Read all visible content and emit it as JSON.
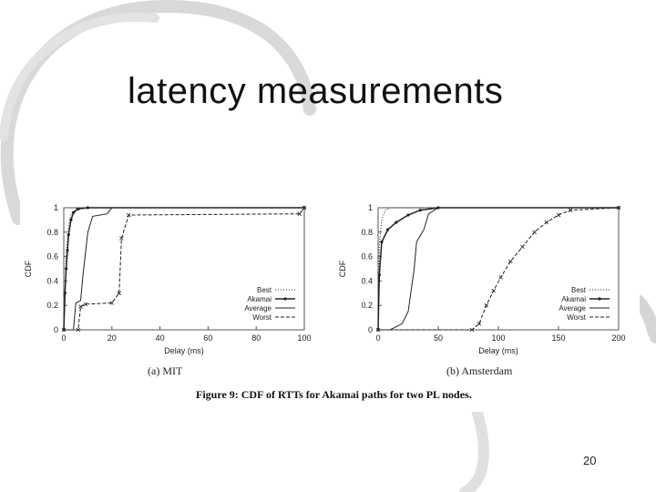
{
  "slide": {
    "title": "latency measurements",
    "page_number": "20"
  },
  "figure": {
    "caption": "Figure 9: CDF of RTTs for Akamai paths for two PL nodes."
  },
  "chart_data": [
    {
      "type": "line",
      "subcaption": "(a) MIT",
      "xlabel": "Delay (ms)",
      "ylabel": "CDF",
      "xlim": [
        0,
        100
      ],
      "ylim": [
        0,
        1
      ],
      "x_ticks": [
        0,
        20,
        40,
        60,
        80,
        100
      ],
      "y_ticks": [
        0,
        0.2,
        0.4,
        0.6,
        0.8,
        1
      ],
      "grid": false,
      "legend_position": "bottom-right",
      "series": [
        {
          "name": "Best",
          "style": "dotted",
          "points": [
            [
              0,
              0
            ],
            [
              1,
              0.6
            ],
            [
              2,
              0.85
            ],
            [
              3,
              0.95
            ],
            [
              5,
              0.99
            ],
            [
              10,
              1
            ],
            [
              100,
              1
            ]
          ]
        },
        {
          "name": "Akamai",
          "style": "solid-circle",
          "points": [
            [
              0,
              0
            ],
            [
              0.5,
              0.3
            ],
            [
              1,
              0.5
            ],
            [
              1.5,
              0.65
            ],
            [
              2,
              0.78
            ],
            [
              3,
              0.9
            ],
            [
              4,
              0.96
            ],
            [
              6,
              0.99
            ],
            [
              10,
              1
            ],
            [
              100,
              1
            ]
          ]
        },
        {
          "name": "Average",
          "style": "solid",
          "points": [
            [
              0,
              0
            ],
            [
              4,
              0
            ],
            [
              5,
              0.22
            ],
            [
              7,
              0.24
            ],
            [
              8,
              0.45
            ],
            [
              10,
              0.8
            ],
            [
              12,
              0.93
            ],
            [
              18,
              0.95
            ],
            [
              20,
              1
            ],
            [
              100,
              1
            ]
          ]
        },
        {
          "name": "Worst",
          "style": "dash-x",
          "points": [
            [
              0,
              0
            ],
            [
              6,
              0
            ],
            [
              7,
              0.19
            ],
            [
              9,
              0.21
            ],
            [
              20,
              0.22
            ],
            [
              23,
              0.3
            ],
            [
              24,
              0.75
            ],
            [
              27,
              0.94
            ],
            [
              98,
              0.95
            ],
            [
              100,
              1
            ]
          ]
        }
      ]
    },
    {
      "type": "line",
      "subcaption": "(b) Amsterdam",
      "xlabel": "Delay (ms)",
      "ylabel": "CDF",
      "xlim": [
        0,
        200
      ],
      "ylim": [
        0,
        1
      ],
      "x_ticks": [
        0,
        50,
        100,
        150,
        200
      ],
      "y_ticks": [
        0,
        0.2,
        0.4,
        0.6,
        0.8,
        1
      ],
      "grid": false,
      "legend_position": "bottom-right",
      "series": [
        {
          "name": "Best",
          "style": "dotted",
          "points": [
            [
              0,
              0
            ],
            [
              1,
              0.7
            ],
            [
              3,
              0.9
            ],
            [
              6,
              0.98
            ],
            [
              10,
              1
            ],
            [
              200,
              1
            ]
          ]
        },
        {
          "name": "Akamai",
          "style": "solid-circle",
          "points": [
            [
              0,
              0
            ],
            [
              1,
              0.45
            ],
            [
              3,
              0.72
            ],
            [
              8,
              0.82
            ],
            [
              15,
              0.88
            ],
            [
              25,
              0.94
            ],
            [
              35,
              0.98
            ],
            [
              50,
              1
            ],
            [
              200,
              1
            ]
          ]
        },
        {
          "name": "Average",
          "style": "solid",
          "points": [
            [
              0,
              0
            ],
            [
              10,
              0
            ],
            [
              20,
              0.05
            ],
            [
              25,
              0.15
            ],
            [
              30,
              0.5
            ],
            [
              32,
              0.72
            ],
            [
              38,
              0.82
            ],
            [
              42,
              0.95
            ],
            [
              50,
              1
            ],
            [
              200,
              1
            ]
          ]
        },
        {
          "name": "Worst",
          "style": "dash-x",
          "points": [
            [
              0,
              0
            ],
            [
              78,
              0
            ],
            [
              84,
              0.05
            ],
            [
              90,
              0.2
            ],
            [
              96,
              0.32
            ],
            [
              102,
              0.43
            ],
            [
              110,
              0.56
            ],
            [
              120,
              0.68
            ],
            [
              130,
              0.8
            ],
            [
              140,
              0.88
            ],
            [
              150,
              0.94
            ],
            [
              160,
              0.98
            ],
            [
              200,
              1
            ]
          ]
        }
      ]
    }
  ]
}
